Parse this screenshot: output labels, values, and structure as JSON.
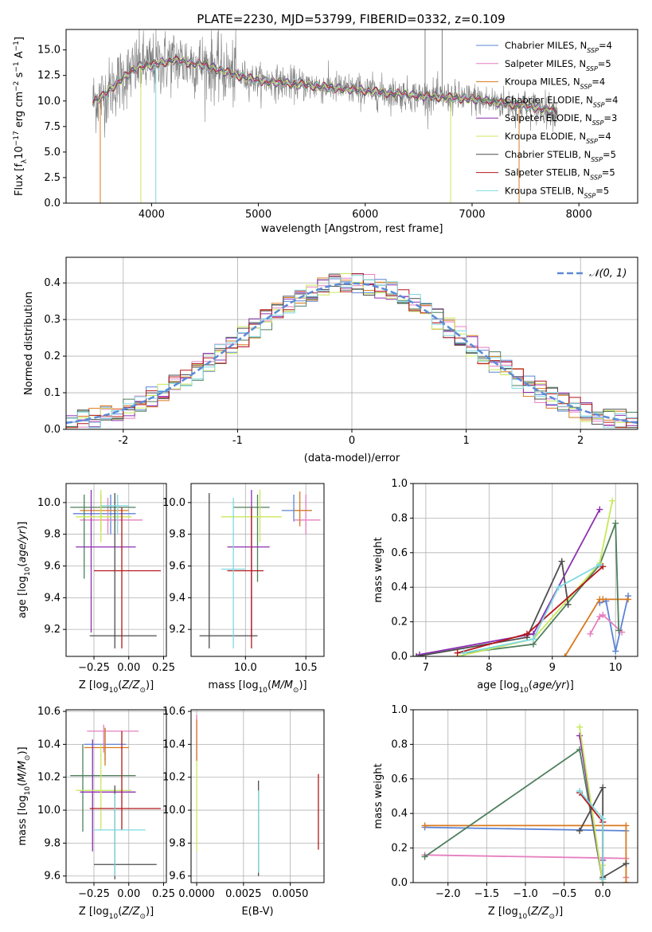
{
  "figure_title": "PLATE=2230, MJD=53799, FIBERID=0332, z=0.109",
  "colors": {
    "Chabrier MILES": "#5b84d6",
    "Salpeter MILES": "#e57fbf",
    "Kroupa MILES": "#d97a1f",
    "Chabrier ELODIE": "#4f7f5c",
    "Salpeter ELODIE": "#8c2fb0",
    "Kroupa ELODIE": "#c9e85a",
    "Chabrier STELIB": "#4d4d4d",
    "Salpeter STELIB": "#b5161b",
    "Kroupa STELIB": "#7fd9e0",
    "gaussian": "#5b8bd6"
  },
  "chart_data": [
    {
      "id": "spectrum",
      "type": "line",
      "xlabel": "wavelength [Angstrom, rest frame]",
      "ylabel": "Flux [f_λ10^-17 erg cm^-2 s^-1 A^-1]",
      "xlim": [
        3200,
        8550
      ],
      "ylim": [
        0,
        17
      ],
      "xticks": [
        4000,
        5000,
        6000,
        7000,
        8000
      ],
      "yticks": [
        0.0,
        2.5,
        5.0,
        7.5,
        10.0,
        12.5,
        15.0
      ],
      "grid": false,
      "legend_position": "top-right",
      "legend": [
        "Chabrier MILES, N_SSP=4",
        "Salpeter MILES, N_SSP=5",
        "Kroupa MILES, N_SSP=4",
        "Chabrier ELODIE, N_SSP=4",
        "Salpeter ELODIE, N_SSP=3",
        "Kroupa ELODIE, N_SSP=4",
        "Chabrier STELIB, N_SSP=5",
        "Salpeter STELIB, N_SSP=5",
        "Kroupa STELIB, N_SSP=5"
      ],
      "continuum": {
        "x": [
          3450,
          3550,
          3700,
          3900,
          4000,
          4200,
          4500,
          4800,
          5000,
          5500,
          6000,
          6500,
          7000,
          7500,
          7800
        ],
        "y": [
          10.0,
          10.5,
          12.0,
          13.5,
          13.5,
          14.0,
          13.5,
          12.5,
          12.0,
          11.5,
          11.0,
          10.5,
          10.2,
          9.5,
          9.0
        ]
      }
    },
    {
      "id": "residual-hist",
      "type": "line",
      "xlabel": "(data-model)/error",
      "ylabel": "Normed distribution",
      "xlim": [
        -2.5,
        2.5
      ],
      "ylim": [
        0,
        0.47
      ],
      "xticks": [
        -2,
        -1,
        0,
        1,
        2
      ],
      "yticks": [
        0.0,
        0.1,
        0.2,
        0.3,
        0.4
      ],
      "grid": true,
      "legend_position": "top-right",
      "legend_label": "𝒩(0, 1)",
      "bin_width": 0.1
    },
    {
      "id": "age-vs-Z",
      "type": "scatter",
      "xlabel": "Z [log10(Z/Z⊙)]",
      "ylabel": "age  [log10(age/yr)]",
      "xlim": [
        -0.45,
        0.27
      ],
      "ylim": [
        9.03,
        10.12
      ],
      "xticks": [
        -0.25,
        0.0,
        0.25
      ],
      "xtick_labels": [
        "−0.25",
        "0.00",
        "0.25"
      ],
      "yticks": [
        9.2,
        9.4,
        9.6,
        9.8,
        10.0
      ],
      "grid": true,
      "bars": [
        {
          "s": "Chabrier MILES",
          "x": -0.13,
          "xlo": -0.4,
          "xhi": 0.05,
          "y": 9.93,
          "ylo": 9.8,
          "yhi": 10.05
        },
        {
          "s": "Salpeter MILES",
          "x": -0.15,
          "xlo": -0.35,
          "xhi": 0.1,
          "y": 9.89,
          "ylo": 9.8,
          "yhi": 10.03
        },
        {
          "s": "Kroupa MILES",
          "x": -0.2,
          "xlo": -0.35,
          "xhi": 0.0,
          "y": 9.95,
          "ylo": 9.82,
          "yhi": 10.05
        },
        {
          "s": "Chabrier ELODIE",
          "x": -0.32,
          "xlo": -0.42,
          "xhi": 0.05,
          "y": 9.97,
          "ylo": 9.52,
          "yhi": 10.05
        },
        {
          "s": "Salpeter ELODIE",
          "x": -0.27,
          "xlo": -0.38,
          "xhi": 0.05,
          "y": 9.72,
          "ylo": 9.18,
          "yhi": 10.08
        },
        {
          "s": "Kroupa ELODIE",
          "x": -0.2,
          "xlo": -0.38,
          "xhi": 0.02,
          "y": 9.91,
          "ylo": 9.75,
          "yhi": 10.08
        },
        {
          "s": "Chabrier STELIB",
          "x": -0.1,
          "xlo": -0.28,
          "xhi": 0.2,
          "y": 9.16,
          "ylo": 9.08,
          "yhi": 10.06
        },
        {
          "s": "Salpeter STELIB",
          "x": -0.05,
          "xlo": -0.25,
          "xhi": 0.23,
          "y": 9.57,
          "ylo": 9.08,
          "yhi": 9.97
        },
        {
          "s": "Kroupa STELIB",
          "x": -0.08,
          "xlo": -0.2,
          "xhi": 0.0,
          "y": 9.98,
          "ylo": 9.8,
          "yhi": 10.05
        }
      ]
    },
    {
      "id": "age-vs-mass",
      "type": "scatter",
      "xlabel": "mass [log10(M/M⊙)]",
      "ylabel": "",
      "xlim": [
        9.55,
        10.65
      ],
      "ylim": [
        9.03,
        10.12
      ],
      "xticks": [
        10.0,
        10.5
      ],
      "xtick_labels": [
        "10.0",
        "10.5"
      ],
      "yticks": [
        9.2,
        9.4,
        9.6,
        9.8,
        10.0
      ],
      "grid": true,
      "bars": [
        {
          "s": "Chabrier MILES",
          "x": 10.4,
          "xlo": 10.3,
          "xhi": 10.55,
          "y": 9.95,
          "ylo": 9.88,
          "yhi": 10.05
        },
        {
          "s": "Salpeter MILES",
          "x": 10.5,
          "xlo": 10.4,
          "xhi": 10.62,
          "y": 9.89,
          "ylo": 9.8,
          "yhi": 10.05
        },
        {
          "s": "Kroupa MILES",
          "x": 10.45,
          "xlo": 10.4,
          "xhi": 10.55,
          "y": 9.95,
          "ylo": 9.85,
          "yhi": 10.07
        },
        {
          "s": "Chabrier ELODIE",
          "x": 10.1,
          "xlo": 9.9,
          "xhi": 10.2,
          "y": 9.97,
          "ylo": 9.5,
          "yhi": 10.05
        },
        {
          "s": "Salpeter ELODIE",
          "x": 10.05,
          "xlo": 9.85,
          "xhi": 10.2,
          "y": 9.72,
          "ylo": 9.15,
          "yhi": 10.08
        },
        {
          "s": "Kroupa ELODIE",
          "x": 10.12,
          "xlo": 9.8,
          "xhi": 10.3,
          "y": 9.91,
          "ylo": 9.75,
          "yhi": 10.08
        },
        {
          "s": "Chabrier STELIB",
          "x": 9.7,
          "xlo": 9.62,
          "xhi": 10.1,
          "y": 9.16,
          "ylo": 9.08,
          "yhi": 10.06
        },
        {
          "s": "Salpeter STELIB",
          "x": 10.05,
          "xlo": 9.85,
          "xhi": 10.15,
          "y": 9.57,
          "ylo": 9.08,
          "yhi": 9.97
        },
        {
          "s": "Kroupa STELIB",
          "x": 9.9,
          "xlo": 9.8,
          "xhi": 10.0,
          "y": 9.58,
          "ylo": 9.08,
          "yhi": 10.03
        }
      ]
    },
    {
      "id": "weight-vs-age",
      "type": "line",
      "xlabel": "age  [log10(age/yr)]",
      "ylabel": "mass weight",
      "xlim": [
        6.8,
        10.35
      ],
      "ylim": [
        0,
        1
      ],
      "xticks": [
        7,
        8,
        9,
        10
      ],
      "yticks": [
        0.0,
        0.2,
        0.4,
        0.6,
        0.8,
        1.0
      ],
      "grid": true,
      "series": [
        {
          "s": "Chabrier MILES",
          "x": [
            9.75,
            9.85,
            10.0,
            10.2
          ],
          "y": [
            0.31,
            0.32,
            0.03,
            0.35
          ]
        },
        {
          "s": "Salpeter MILES",
          "x": [
            9.6,
            9.75,
            9.8,
            10.1
          ],
          "y": [
            0.13,
            0.23,
            0.24,
            0.14
          ]
        },
        {
          "s": "Kroupa MILES",
          "x": [
            9.2,
            9.75,
            9.8,
            10.2
          ],
          "y": [
            0.0,
            0.33,
            0.33,
            0.33
          ]
        },
        {
          "s": "Chabrier ELODIE",
          "x": [
            7.6,
            8.7,
            9.75,
            10.0,
            10.05
          ],
          "y": [
            0.02,
            0.07,
            0.53,
            0.77,
            0.15
          ]
        },
        {
          "s": "Salpeter ELODIE",
          "x": [
            6.9,
            8.7,
            9.75
          ],
          "y": [
            0.01,
            0.13,
            0.85
          ]
        },
        {
          "s": "Kroupa ELODIE",
          "x": [
            7.5,
            8.7,
            9.75,
            9.95
          ],
          "y": [
            0.0,
            0.1,
            0.54,
            0.9
          ]
        },
        {
          "s": "Chabrier STELIB",
          "x": [
            6.85,
            8.6,
            9.15,
            9.25
          ],
          "y": [
            0.0,
            0.11,
            0.55,
            0.3
          ]
        },
        {
          "s": "Salpeter STELIB",
          "x": [
            7.5,
            8.6,
            9.8
          ],
          "y": [
            0.02,
            0.13,
            0.52
          ]
        },
        {
          "s": "Kroupa STELIB",
          "x": [
            7.6,
            8.7,
            9.1,
            9.75
          ],
          "y": [
            0.02,
            0.1,
            0.4,
            0.53
          ]
        }
      ]
    },
    {
      "id": "mass-vs-Z",
      "type": "scatter",
      "xlabel": "Z [log10(Z/Z⊙)]",
      "ylabel": "mass [log10(M/M⊙)]",
      "xlim": [
        -0.45,
        0.27
      ],
      "ylim": [
        9.56,
        10.61
      ],
      "xticks": [
        -0.25,
        0.0,
        0.25
      ],
      "xtick_labels": [
        "−0.25",
        "0.00",
        "0.25"
      ],
      "yticks": [
        9.6,
        9.8,
        10.0,
        10.2,
        10.4,
        10.6
      ],
      "grid": true,
      "bars": [
        {
          "s": "Chabrier MILES",
          "x": -0.17,
          "xlo": -0.32,
          "xhi": -0.02,
          "y": 10.4,
          "ylo": 10.3,
          "yhi": 10.5
        },
        {
          "s": "Salpeter MILES",
          "x": -0.18,
          "xlo": -0.3,
          "xhi": 0.07,
          "y": 10.48,
          "ylo": 10.35,
          "yhi": 10.52
        },
        {
          "s": "Kroupa MILES",
          "x": -0.17,
          "xlo": -0.32,
          "xhi": 0.0,
          "y": 10.38,
          "ylo": 10.27,
          "yhi": 10.5
        },
        {
          "s": "Chabrier ELODIE",
          "x": -0.33,
          "xlo": -0.42,
          "xhi": 0.05,
          "y": 10.21,
          "ylo": 9.87,
          "yhi": 10.4
        },
        {
          "s": "Salpeter ELODIE",
          "x": -0.26,
          "xlo": -0.35,
          "xhi": 0.05,
          "y": 10.11,
          "ylo": 9.75,
          "yhi": 10.43
        },
        {
          "s": "Kroupa ELODIE",
          "x": -0.2,
          "xlo": -0.38,
          "xhi": 0.02,
          "y": 10.12,
          "ylo": 9.88,
          "yhi": 10.4
        },
        {
          "s": "Chabrier STELIB",
          "x": -0.1,
          "xlo": -0.25,
          "xhi": 0.2,
          "y": 9.67,
          "ylo": 9.58,
          "yhi": 10.15
        },
        {
          "s": "Salpeter STELIB",
          "x": -0.05,
          "xlo": -0.28,
          "xhi": 0.23,
          "y": 10.01,
          "ylo": 9.88,
          "yhi": 10.48
        },
        {
          "s": "Kroupa STELIB",
          "x": -0.1,
          "xlo": -0.25,
          "xhi": 0.12,
          "y": 9.88,
          "ylo": 9.6,
          "yhi": 10.1
        }
      ]
    },
    {
      "id": "mass-vs-ebv",
      "type": "scatter",
      "xlabel": "E(B-V)",
      "ylabel": "",
      "xlim": [
        -0.0003,
        0.0068
      ],
      "ylim": [
        9.56,
        10.61
      ],
      "xticks": [
        0.0,
        0.0025,
        0.005
      ],
      "xtick_labels": [
        "0.0000",
        "0.0025",
        "0.0050"
      ],
      "yticks": [
        9.6,
        9.8,
        10.0,
        10.2,
        10.4,
        10.6
      ],
      "grid": true,
      "bars": [
        {
          "s": "Salpeter MILES",
          "x": 0.0,
          "y": 10.45,
          "ylo": 10.3,
          "yhi": 10.58
        },
        {
          "s": "Kroupa MILES",
          "x": 0.0,
          "y": 10.4,
          "ylo": 10.3,
          "yhi": 10.55
        },
        {
          "s": "Kroupa ELODIE",
          "x": 0.0,
          "y": 10.0,
          "ylo": 9.75,
          "yhi": 10.3
        },
        {
          "s": "Chabrier STELIB",
          "x": 0.0033,
          "y": 9.9,
          "ylo": 9.6,
          "yhi": 10.18
        },
        {
          "s": "Kroupa STELIB",
          "x": 0.0033,
          "y": 9.88,
          "ylo": 9.62,
          "yhi": 10.12
        },
        {
          "s": "Salpeter STELIB",
          "x": 0.0065,
          "y": 10.0,
          "ylo": 9.76,
          "yhi": 10.22
        }
      ]
    },
    {
      "id": "weight-vs-Z",
      "type": "line",
      "xlabel": "Z [log10(Z/Z⊙)]",
      "ylabel": "mass weight",
      "xlim": [
        -2.45,
        0.45
      ],
      "ylim": [
        0,
        1
      ],
      "xticks": [
        -2.0,
        -1.5,
        -1.0,
        -0.5,
        0.0
      ],
      "xtick_labels": [
        "−2.0",
        "−1.5",
        "−1.0",
        "−0.5",
        "0.0"
      ],
      "yticks": [
        0.0,
        0.2,
        0.4,
        0.6,
        0.8,
        1.0
      ],
      "grid": true,
      "series": [
        {
          "s": "Chabrier MILES",
          "x": [
            -2.3,
            0.3
          ],
          "y": [
            0.32,
            0.3
          ]
        },
        {
          "s": "Salpeter MILES",
          "x": [
            -2.3,
            0.3,
            0.3
          ],
          "y": [
            0.16,
            0.14,
            0.03
          ]
        },
        {
          "s": "Kroupa MILES",
          "x": [
            -2.3,
            0.3,
            0.3
          ],
          "y": [
            0.33,
            0.33,
            0.0
          ]
        },
        {
          "s": "Chabrier ELODIE",
          "x": [
            -2.3,
            -0.3,
            0.0
          ],
          "y": [
            0.15,
            0.77,
            0.0
          ]
        },
        {
          "s": "Salpeter ELODIE",
          "x": [
            -0.3,
            0.0,
            0.0
          ],
          "y": [
            0.85,
            0.0,
            0.13
          ]
        },
        {
          "s": "Kroupa ELODIE",
          "x": [
            -0.3,
            0.0,
            0.0
          ],
          "y": [
            0.9,
            0.0,
            0.1
          ]
        },
        {
          "s": "Chabrier STELIB",
          "x": [
            -0.3,
            0.0,
            0.0,
            0.3
          ],
          "y": [
            0.3,
            0.55,
            0.03,
            0.11
          ]
        },
        {
          "s": "Salpeter STELIB",
          "x": [
            -0.3,
            0.0,
            0.0
          ],
          "y": [
            0.52,
            0.35,
            0.02
          ]
        },
        {
          "s": "Kroupa STELIB",
          "x": [
            -0.3,
            0.0,
            0.0
          ],
          "y": [
            0.53,
            0.37,
            0.02
          ]
        }
      ]
    }
  ]
}
